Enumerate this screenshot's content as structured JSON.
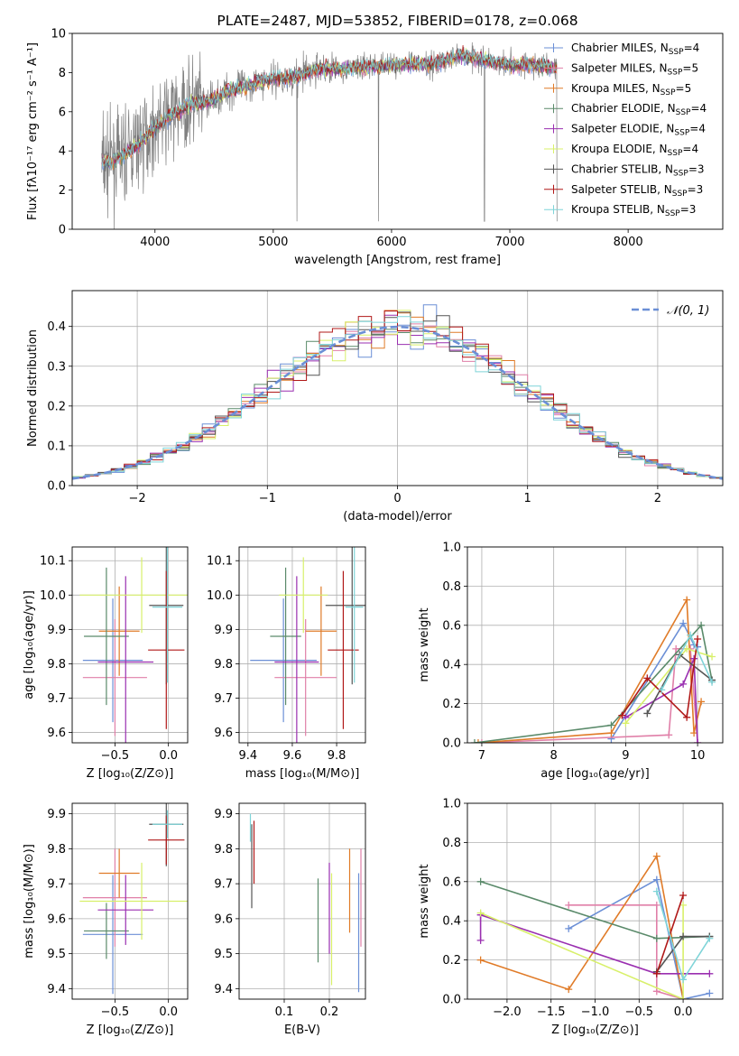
{
  "colors": {
    "blue": "#6b8fd6",
    "pink": "#e07fa8",
    "orange": "#e07b28",
    "green": "#5a8a6a",
    "purple": "#9a2fb0",
    "yellow": "#d8f06a",
    "gray": "#555555",
    "red": "#b01818",
    "cyan": "#7fd4d8",
    "grid": "#b0b0b0",
    "obs": "#808080"
  },
  "chart_data": [
    {
      "id": "spectrum",
      "type": "line",
      "title": "PLATE=2487, MJD=53852, FIBERID=0178, z=0.068",
      "xlabel": "wavelength [Angstrom, rest frame]",
      "ylabel": "Flux [fλ10⁻¹⁷ erg cm⁻² s⁻¹ A⁻¹]",
      "xlim": [
        3300,
        8800
      ],
      "ylim": [
        0,
        10
      ],
      "xticks": [
        "4000",
        "5000",
        "6000",
        "7000",
        "8000"
      ],
      "yticks": [
        "0",
        "2",
        "4",
        "6",
        "8",
        "10"
      ],
      "x": [
        3550,
        3700,
        3850,
        4000,
        4150,
        4300,
        4450,
        4600,
        4750,
        4900,
        5050,
        5200,
        5400,
        5600,
        5800,
        6000,
        6200,
        6400,
        6600,
        6800,
        7000,
        7200,
        7400
      ],
      "y": [
        3.4,
        3.6,
        4.3,
        5.2,
        5.9,
        6.4,
        6.5,
        7.0,
        7.3,
        7.6,
        7.7,
        7.8,
        8.2,
        8.2,
        8.3,
        8.4,
        8.4,
        8.5,
        8.9,
        8.6,
        8.4,
        8.4,
        8.2
      ],
      "legend_loc": "upper right",
      "legend": [
        {
          "label": "Chabrier MILES, N",
          "sub": "SSP",
          "tail": "=4",
          "color": "blue"
        },
        {
          "label": "Salpeter MILES, N",
          "sub": "SSP",
          "tail": "=5",
          "color": "pink"
        },
        {
          "label": "Kroupa MILES, N",
          "sub": "SSP",
          "tail": "=5",
          "color": "orange"
        },
        {
          "label": "Chabrier ELODIE, N",
          "sub": "SSP",
          "tail": "=4",
          "color": "green"
        },
        {
          "label": "Salpeter ELODIE, N",
          "sub": "SSP",
          "tail": "=4",
          "color": "purple"
        },
        {
          "label": "Kroupa ELODIE, N",
          "sub": "SSP",
          "tail": "=4",
          "color": "yellow"
        },
        {
          "label": "Chabrier STELIB, N",
          "sub": "SSP",
          "tail": "=3",
          "color": "gray"
        },
        {
          "label": "Salpeter STELIB, N",
          "sub": "SSP",
          "tail": "=3",
          "color": "red"
        },
        {
          "label": "Kroupa STELIB, N",
          "sub": "SSP",
          "tail": "=3",
          "color": "cyan"
        }
      ]
    },
    {
      "id": "residuals",
      "type": "line",
      "xlabel": "(data-model)/error",
      "ylabel": "Normed distribution",
      "xlim": [
        -2.5,
        2.5
      ],
      "ylim": [
        0,
        0.49
      ],
      "xticks": [
        "−2",
        "−1",
        "0",
        "1",
        "2"
      ],
      "yticks": [
        "0.0",
        "0.1",
        "0.2",
        "0.3",
        "0.4"
      ],
      "bin_width": 0.1,
      "gaussian_label": "𝒩(0, 1)",
      "legend_loc": "upper right"
    },
    {
      "id": "z_age",
      "type": "scatter",
      "xlabel": "Z [log₁₀(Z/Z⊙)]",
      "ylabel": "age  [log₁₀(age/yr)]",
      "xlim": [
        -0.9,
        0.18
      ],
      "ylim": [
        9.57,
        10.14
      ],
      "xticks": [
        "−0.5",
        "0.0"
      ],
      "yticks": [
        "9.6",
        "9.7",
        "9.8",
        "9.9",
        "10.0",
        "10.1"
      ],
      "points": [
        {
          "x": -0.52,
          "y": 9.81,
          "xerr": 0.28,
          "yerr": 0.18,
          "color": "blue"
        },
        {
          "x": -0.5,
          "y": 9.76,
          "xerr": 0.3,
          "yerr": 0.17,
          "color": "pink"
        },
        {
          "x": -0.46,
          "y": 9.895,
          "xerr": 0.19,
          "yerr": 0.13,
          "color": "orange"
        },
        {
          "x": -0.58,
          "y": 9.88,
          "xerr": 0.21,
          "yerr": 0.2,
          "color": "green"
        },
        {
          "x": -0.4,
          "y": 9.805,
          "xerr": 0.26,
          "yerr": 0.25,
          "color": "purple"
        },
        {
          "x": -0.25,
          "y": 10.0,
          "xerr": 0.58,
          "yerr": 0.11,
          "color": "yellow"
        },
        {
          "x": -0.02,
          "y": 9.97,
          "xerr": 0.16,
          "yerr": 0.23,
          "color": "gray"
        },
        {
          "x": -0.02,
          "y": 9.84,
          "xerr": 0.17,
          "yerr": 0.23,
          "color": "red"
        },
        {
          "x": -0.01,
          "y": 9.965,
          "xerr": 0.14,
          "yerr": 0.22,
          "color": "cyan"
        }
      ]
    },
    {
      "id": "mass_age",
      "type": "scatter",
      "xlabel": "mass [log₁₀(M/M⊙)]",
      "ylabel": "",
      "xlim": [
        9.36,
        9.93
      ],
      "ylim": [
        9.57,
        10.14
      ],
      "xticks": [
        "9.4",
        "9.6",
        "9.8"
      ],
      "yticks": [
        "9.6",
        "9.7",
        "9.8",
        "9.9",
        "10.0",
        "10.1"
      ],
      "points": [
        {
          "x": 9.56,
          "y": 9.81,
          "xerr": 0.15,
          "yerr": 0.18,
          "color": "blue"
        },
        {
          "x": 9.66,
          "y": 9.76,
          "xerr": 0.14,
          "yerr": 0.17,
          "color": "pink"
        },
        {
          "x": 9.73,
          "y": 9.895,
          "xerr": 0.07,
          "yerr": 0.13,
          "color": "orange"
        },
        {
          "x": 9.57,
          "y": 9.88,
          "xerr": 0.07,
          "yerr": 0.2,
          "color": "green"
        },
        {
          "x": 9.62,
          "y": 9.805,
          "xerr": 0.1,
          "yerr": 0.25,
          "color": "purple"
        },
        {
          "x": 9.65,
          "y": 10.0,
          "xerr": 0.11,
          "yerr": 0.11,
          "color": "yellow"
        },
        {
          "x": 9.87,
          "y": 9.97,
          "xerr": 0.12,
          "yerr": 0.23,
          "color": "gray"
        },
        {
          "x": 9.83,
          "y": 9.84,
          "xerr": 0.07,
          "yerr": 0.23,
          "color": "red"
        },
        {
          "x": 9.88,
          "y": 9.965,
          "xerr": 0.04,
          "yerr": 0.22,
          "color": "cyan"
        }
      ]
    },
    {
      "id": "age_weight",
      "type": "line",
      "xlabel": "age  [log₁₀(age/yr)]",
      "ylabel": "mass weight",
      "xlim": [
        6.8,
        10.35
      ],
      "ylim": [
        0,
        1.0
      ],
      "xticks": [
        "7",
        "8",
        "9",
        "10"
      ],
      "yticks": [
        "0.0",
        "0.2",
        "0.4",
        "0.6",
        "0.8",
        "1.0"
      ],
      "series": [
        {
          "color": "blue",
          "x": [
            8.8,
            9.8,
            9.95,
            10.0
          ],
          "y": [
            0.02,
            0.61,
            0.5,
            0.49
          ]
        },
        {
          "color": "pink",
          "x": [
            7.0,
            9.6,
            9.7,
            9.9,
            10.0
          ],
          "y": [
            0.0,
            0.04,
            0.48,
            0.48,
            0.0
          ]
        },
        {
          "color": "orange",
          "x": [
            6.95,
            8.8,
            9.85,
            9.95,
            10.05
          ],
          "y": [
            0.0,
            0.05,
            0.73,
            0.05,
            0.21
          ]
        },
        {
          "color": "green",
          "x": [
            6.9,
            8.8,
            10.05,
            10.2
          ],
          "y": [
            0.0,
            0.09,
            0.6,
            0.32
          ]
        },
        {
          "color": "purple",
          "x": [
            9.0,
            9.8,
            9.95,
            10.0
          ],
          "y": [
            0.13,
            0.3,
            0.43,
            0.0
          ]
        },
        {
          "color": "yellow",
          "x": [
            9.0,
            9.85,
            10.2
          ],
          "y": [
            0.1,
            0.48,
            0.44
          ]
        },
        {
          "color": "gray",
          "x": [
            9.3,
            9.75,
            10.2
          ],
          "y": [
            0.15,
            0.45,
            0.32
          ]
        },
        {
          "color": "red",
          "x": [
            8.95,
            9.3,
            9.85,
            10.0
          ],
          "y": [
            0.14,
            0.33,
            0.13,
            0.53
          ]
        },
        {
          "color": "cyan",
          "x": [
            9.5,
            9.9,
            10.2
          ],
          "y": [
            0.27,
            0.55,
            0.31
          ]
        }
      ]
    },
    {
      "id": "z_mass",
      "type": "scatter",
      "xlabel": "Z [log₁₀(Z/Z⊙)]",
      "ylabel": "mass [log₁₀(M/M⊙)]",
      "xlim": [
        -0.9,
        0.18
      ],
      "ylim": [
        9.37,
        9.93
      ],
      "xticks": [
        "−0.5",
        "0.0"
      ],
      "yticks": [
        "9.4",
        "9.5",
        "9.6",
        "9.7",
        "9.8",
        "9.9"
      ],
      "points": [
        {
          "x": -0.52,
          "y": 9.555,
          "xerr": 0.28,
          "yerr": 0.17,
          "color": "blue"
        },
        {
          "x": -0.5,
          "y": 9.66,
          "xerr": 0.3,
          "yerr": 0.14,
          "color": "pink"
        },
        {
          "x": -0.46,
          "y": 9.73,
          "xerr": 0.19,
          "yerr": 0.07,
          "color": "orange"
        },
        {
          "x": -0.58,
          "y": 9.565,
          "xerr": 0.21,
          "yerr": 0.08,
          "color": "green"
        },
        {
          "x": -0.4,
          "y": 9.625,
          "xerr": 0.26,
          "yerr": 0.1,
          "color": "purple"
        },
        {
          "x": -0.25,
          "y": 9.65,
          "xerr": 0.58,
          "yerr": 0.11,
          "color": "yellow"
        },
        {
          "x": -0.02,
          "y": 9.87,
          "xerr": 0.16,
          "yerr": 0.12,
          "color": "gray"
        },
        {
          "x": -0.02,
          "y": 9.825,
          "xerr": 0.17,
          "yerr": 0.07,
          "color": "red"
        },
        {
          "x": -0.01,
          "y": 9.87,
          "xerr": 0.14,
          "yerr": 0.04,
          "color": "cyan"
        }
      ]
    },
    {
      "id": "ebv_mass",
      "type": "scatter",
      "xlabel": "E(B-V)",
      "ylabel": "",
      "xlim": [
        0.0,
        0.28
      ],
      "ylim": [
        9.37,
        9.93
      ],
      "xticks": [
        "0.1",
        "0.2"
      ],
      "yticks": [
        "9.4",
        "9.5",
        "9.6",
        "9.7",
        "9.8",
        "9.9"
      ],
      "points": [
        {
          "x": 0.265,
          "y": 9.56,
          "yerr": 0.17,
          "color": "blue"
        },
        {
          "x": 0.27,
          "y": 9.66,
          "yerr": 0.14,
          "color": "pink"
        },
        {
          "x": 0.245,
          "y": 9.68,
          "yerr": 0.12,
          "color": "orange"
        },
        {
          "x": 0.175,
          "y": 9.595,
          "yerr": 0.12,
          "color": "green"
        },
        {
          "x": 0.2,
          "y": 9.63,
          "yerr": 0.13,
          "color": "purple"
        },
        {
          "x": 0.205,
          "y": 9.57,
          "yerr": 0.16,
          "color": "yellow"
        },
        {
          "x": 0.028,
          "y": 9.75,
          "yerr": 0.12,
          "color": "gray"
        },
        {
          "x": 0.033,
          "y": 9.79,
          "yerr": 0.09,
          "color": "red"
        },
        {
          "x": 0.025,
          "y": 9.86,
          "yerr": 0.04,
          "color": "cyan"
        }
      ]
    },
    {
      "id": "z_weight",
      "type": "line",
      "xlabel": "Z [log₁₀(Z/Z⊙)]",
      "ylabel": "mass weight",
      "xlim": [
        -2.45,
        0.45
      ],
      "ylim": [
        0,
        1.0
      ],
      "xticks": [
        "−2.0",
        "−1.5",
        "−1.0",
        "−0.5",
        "0.0"
      ],
      "yticks": [
        "0.0",
        "0.2",
        "0.4",
        "0.6",
        "0.8",
        "1.0"
      ],
      "series": [
        {
          "color": "blue",
          "x": [
            -1.3,
            -0.3,
            0.0,
            0.3
          ],
          "y": [
            0.36,
            0.61,
            0.0,
            0.03
          ]
        },
        {
          "color": "pink",
          "x": [
            -1.3,
            -0.3,
            -0.3,
            0.0
          ],
          "y": [
            0.48,
            0.48,
            0.04,
            0.0
          ]
        },
        {
          "color": "orange",
          "x": [
            -2.3,
            -1.3,
            -0.3,
            0.0
          ],
          "y": [
            0.2,
            0.05,
            0.73,
            0.0
          ]
        },
        {
          "color": "green",
          "x": [
            -2.3,
            -0.3,
            0.3
          ],
          "y": [
            0.6,
            0.31,
            0.32
          ]
        },
        {
          "color": "purple",
          "x": [
            -2.3,
            -2.3,
            -0.3,
            0.3
          ],
          "y": [
            0.3,
            0.43,
            0.13,
            0.13
          ]
        },
        {
          "color": "yellow",
          "x": [
            -2.3,
            0.0,
            0.0
          ],
          "y": [
            0.44,
            0.0,
            0.48
          ]
        },
        {
          "color": "gray",
          "x": [
            -0.3,
            0.0,
            0.3
          ],
          "y": [
            0.14,
            0.32,
            0.32
          ]
        },
        {
          "color": "red",
          "x": [
            -0.3,
            0.0
          ],
          "y": [
            0.13,
            0.53
          ]
        },
        {
          "color": "cyan",
          "x": [
            -0.3,
            0.0,
            0.3
          ],
          "y": [
            0.55,
            0.1,
            0.31
          ]
        }
      ]
    }
  ]
}
